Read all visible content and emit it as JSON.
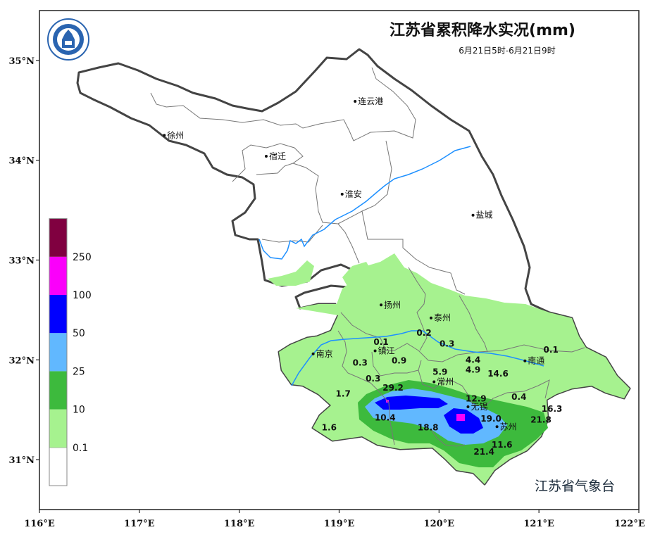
{
  "chart_data": {
    "type": "map",
    "title": "江苏省累积降水实况(mm)",
    "subtitle": "6月21日5时-6月21日9时",
    "agency": "江苏省气象台",
    "logo_icon": "jiangsu-meteorological-logo",
    "xlim": [
      116,
      122
    ],
    "ylim": [
      30.5,
      35.5
    ],
    "x_ticks": [
      {
        "value": 116,
        "label": "116°E"
      },
      {
        "value": 117,
        "label": "117°E"
      },
      {
        "value": 118,
        "label": "118°E"
      },
      {
        "value": 119,
        "label": "119°E"
      },
      {
        "value": 120,
        "label": "120°E"
      },
      {
        "value": 121,
        "label": "121°E"
      },
      {
        "value": 122,
        "label": "122°E"
      }
    ],
    "y_ticks": [
      {
        "value": 31,
        "label": "31°N"
      },
      {
        "value": 32,
        "label": "32°N"
      },
      {
        "value": 33,
        "label": "33°N"
      },
      {
        "value": 34,
        "label": "34°N"
      },
      {
        "value": 35,
        "label": "35°N"
      }
    ],
    "legend": {
      "levels": [
        "0.1",
        "10",
        "25",
        "50",
        "100",
        "250"
      ],
      "colors": [
        "#ffffff",
        "#a6f28f",
        "#3dba3d",
        "#61b8ff",
        "#0000ff",
        "#fa00fa",
        "#800040"
      ]
    },
    "cities": [
      {
        "name": "连云港",
        "lon": 119.16,
        "lat": 34.59
      },
      {
        "name": "徐州",
        "lon": 117.25,
        "lat": 34.25
      },
      {
        "name": "宿迁",
        "lon": 118.27,
        "lat": 34.04
      },
      {
        "name": "淮安",
        "lon": 119.03,
        "lat": 33.66
      },
      {
        "name": "盐城",
        "lon": 120.34,
        "lat": 33.45
      },
      {
        "name": "扬州",
        "lon": 119.42,
        "lat": 32.55
      },
      {
        "name": "泰州",
        "lon": 119.92,
        "lat": 32.42
      },
      {
        "name": "南京",
        "lon": 118.74,
        "lat": 32.06
      },
      {
        "name": "镇江",
        "lon": 119.36,
        "lat": 32.09
      },
      {
        "name": "南通",
        "lon": 120.86,
        "lat": 31.99
      },
      {
        "name": "常州",
        "lon": 119.95,
        "lat": 31.78
      },
      {
        "name": "无锡",
        "lon": 120.29,
        "lat": 31.53
      },
      {
        "name": "苏州",
        "lon": 120.58,
        "lat": 31.33
      }
    ],
    "station_values": [
      {
        "value": "0.2",
        "lon": 119.85,
        "lat": 32.27
      },
      {
        "value": "0.3",
        "lon": 120.08,
        "lat": 32.16
      },
      {
        "value": "0.1",
        "lon": 121.12,
        "lat": 32.1
      },
      {
        "value": "0.1",
        "lon": 119.42,
        "lat": 32.18
      },
      {
        "value": "0.3",
        "lon": 119.21,
        "lat": 31.97
      },
      {
        "value": "0.9",
        "lon": 119.6,
        "lat": 31.99
      },
      {
        "value": "4.4",
        "lon": 120.34,
        "lat": 32.0
      },
      {
        "value": "5.9",
        "lon": 120.01,
        "lat": 31.88
      },
      {
        "value": "4.9",
        "lon": 120.34,
        "lat": 31.9
      },
      {
        "value": "14.6",
        "lon": 120.59,
        "lat": 31.86
      },
      {
        "value": "0.3",
        "lon": 119.34,
        "lat": 31.81
      },
      {
        "value": "29.2",
        "lon": 119.54,
        "lat": 31.72
      },
      {
        "value": "1.7",
        "lon": 119.04,
        "lat": 31.66
      },
      {
        "value": "0.4",
        "lon": 120.8,
        "lat": 31.63
      },
      {
        "value": "12.9",
        "lon": 120.37,
        "lat": 31.61
      },
      {
        "value": "16.3",
        "lon": 121.13,
        "lat": 31.51
      },
      {
        "value": "10.4",
        "lon": 119.46,
        "lat": 31.42
      },
      {
        "value": "19.0",
        "lon": 120.52,
        "lat": 31.41
      },
      {
        "value": "21.8",
        "lon": 121.02,
        "lat": 31.4
      },
      {
        "value": "1.6",
        "lon": 118.9,
        "lat": 31.32
      },
      {
        "value": "18.8",
        "lon": 119.89,
        "lat": 31.32
      },
      {
        "value": "11.6",
        "lon": 120.63,
        "lat": 31.15
      },
      {
        "value": "21.4",
        "lon": 120.45,
        "lat": 31.08
      }
    ]
  }
}
